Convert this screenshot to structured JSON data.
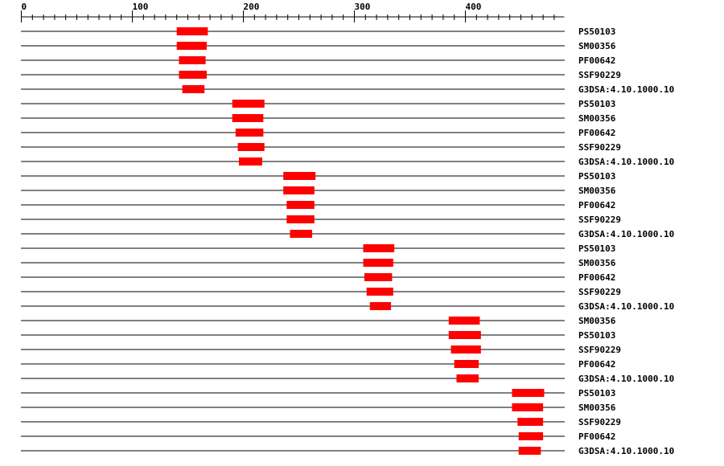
{
  "axis": {
    "min": 0,
    "max": 489,
    "major_ticks": [
      0,
      100,
      200,
      300,
      400
    ],
    "minor_step": 10
  },
  "colors": {
    "domain": "#ff0000",
    "line": "#000000"
  },
  "sequence_length": 489,
  "rows": [
    {
      "label": "PS50103",
      "start": 140,
      "end": 168
    },
    {
      "label": "SM00356",
      "start": 140,
      "end": 167
    },
    {
      "label": "PF00642",
      "start": 142,
      "end": 166
    },
    {
      "label": "SSF90229",
      "start": 142,
      "end": 167
    },
    {
      "label": "G3DSA:4.10.1000.10",
      "start": 145,
      "end": 165
    },
    {
      "label": "PS50103",
      "start": 190,
      "end": 219
    },
    {
      "label": "SM00356",
      "start": 190,
      "end": 218
    },
    {
      "label": "PF00642",
      "start": 193,
      "end": 218
    },
    {
      "label": "SSF90229",
      "start": 195,
      "end": 219
    },
    {
      "label": "G3DSA:4.10.1000.10",
      "start": 196,
      "end": 217
    },
    {
      "label": "PS50103",
      "start": 236,
      "end": 265
    },
    {
      "label": "SM00356",
      "start": 236,
      "end": 264
    },
    {
      "label": "PF00642",
      "start": 239,
      "end": 264
    },
    {
      "label": "SSF90229",
      "start": 239,
      "end": 264
    },
    {
      "label": "G3DSA:4.10.1000.10",
      "start": 242,
      "end": 262
    },
    {
      "label": "PS50103",
      "start": 308,
      "end": 336
    },
    {
      "label": "SM00356",
      "start": 308,
      "end": 335
    },
    {
      "label": "PF00642",
      "start": 309,
      "end": 334
    },
    {
      "label": "SSF90229",
      "start": 311,
      "end": 335
    },
    {
      "label": "G3DSA:4.10.1000.10",
      "start": 314,
      "end": 333
    },
    {
      "label": "SM00356",
      "start": 385,
      "end": 413
    },
    {
      "label": "PS50103",
      "start": 385,
      "end": 414
    },
    {
      "label": "SSF90229",
      "start": 387,
      "end": 414
    },
    {
      "label": "PF00642",
      "start": 390,
      "end": 412
    },
    {
      "label": "G3DSA:4.10.1000.10",
      "start": 392,
      "end": 412
    },
    {
      "label": "PS50103",
      "start": 442,
      "end": 471
    },
    {
      "label": "SM00356",
      "start": 442,
      "end": 470
    },
    {
      "label": "SSF90229",
      "start": 447,
      "end": 470
    },
    {
      "label": "PF00642",
      "start": 448,
      "end": 470
    },
    {
      "label": "G3DSA:4.10.1000.10",
      "start": 448,
      "end": 468
    }
  ]
}
